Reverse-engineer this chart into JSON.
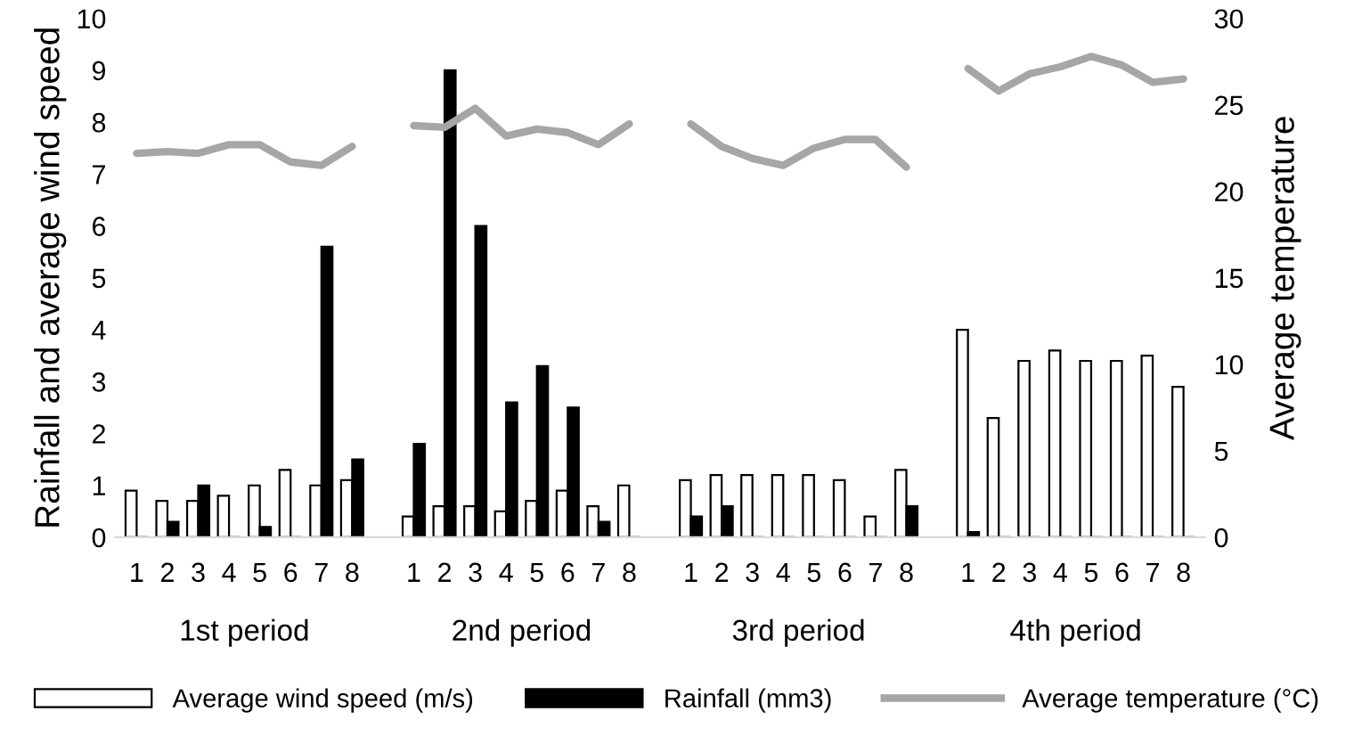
{
  "chart_data": {
    "type": "bar",
    "categories": [
      "1",
      "2",
      "3",
      "4",
      "5",
      "6",
      "7",
      "8",
      null,
      "1",
      "2",
      "3",
      "4",
      "5",
      "6",
      "7",
      "8",
      null,
      "1",
      "2",
      "3",
      "4",
      "5",
      "6",
      "7",
      "8",
      null,
      "1",
      "2",
      "3",
      "4",
      "5",
      "6",
      "7",
      "8"
    ],
    "series": [
      {
        "name": "Average wind speed (m/s)",
        "color": "#ffffff",
        "values": [
          0.9,
          0.7,
          0.7,
          0.8,
          1.0,
          1.3,
          1.0,
          1.1,
          null,
          0.4,
          0.6,
          0.6,
          0.5,
          0.7,
          0.9,
          0.6,
          1.0,
          null,
          1.1,
          1.2,
          1.2,
          1.2,
          1.2,
          1.1,
          0.4,
          1.3,
          null,
          4.0,
          2.3,
          3.4,
          3.6,
          3.4,
          3.4,
          3.5,
          2.9
        ]
      },
      {
        "name": "Rainfall (mm3)",
        "color": "#000000",
        "values": [
          0,
          0.3,
          1.0,
          0,
          0.2,
          0,
          5.6,
          1.5,
          null,
          1.8,
          9.0,
          6.0,
          2.6,
          3.3,
          2.5,
          0.3,
          0,
          null,
          0.4,
          0.6,
          0,
          0,
          0,
          0,
          0,
          0.6,
          null,
          0.1,
          0,
          0,
          0,
          0,
          0,
          0,
          0
        ]
      },
      {
        "name": "Average temperature (°C)",
        "type": "line",
        "axis": "y2",
        "color": "#a6a6a6",
        "values": [
          22.2,
          22.3,
          22.2,
          22.7,
          22.7,
          21.7,
          21.5,
          22.6,
          null,
          23.8,
          23.7,
          24.8,
          23.2,
          23.6,
          23.4,
          22.7,
          23.9,
          null,
          23.9,
          22.6,
          21.9,
          21.5,
          22.5,
          23.0,
          23.0,
          21.4,
          null,
          27.1,
          25.8,
          26.8,
          27.2,
          27.8,
          27.3,
          26.3,
          26.5
        ]
      }
    ],
    "ylabel": "Rainfall and average wind speed",
    "y2label": "Average temperature",
    "ylim": [
      0,
      10
    ],
    "yticks": [
      0,
      1,
      2,
      3,
      4,
      5,
      6,
      7,
      8,
      9,
      10
    ],
    "y2lim": [
      0,
      30
    ],
    "y2ticks": [
      0,
      5,
      10,
      15,
      20,
      25,
      30
    ],
    "annotations": [
      "1st period",
      "2nd period",
      "3rd period",
      "4th period"
    ],
    "grid": false,
    "legend": "bottom"
  }
}
